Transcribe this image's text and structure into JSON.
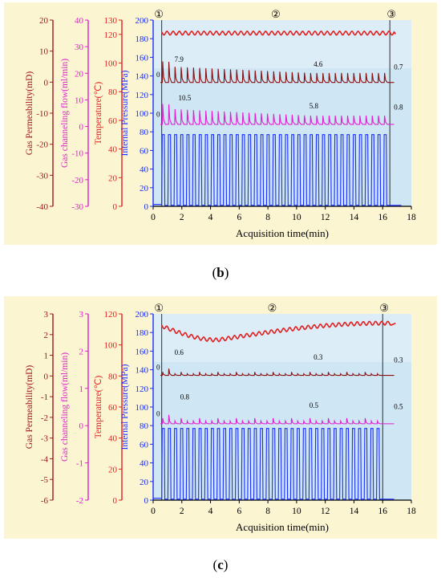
{
  "panels": [
    {
      "caption_letter": "b",
      "y_axes": [
        {
          "label": "Gas Permeability(mD)",
          "color": "#a01818",
          "ticks": [
            "20",
            "10",
            "0",
            "-10",
            "-20",
            "-30",
            "-40"
          ]
        },
        {
          "label": "Gas channeling flow(ml/min)",
          "color": "#e020d0",
          "ticks": [
            "40",
            "30",
            "20",
            "10",
            "0",
            "-10",
            "-20",
            "-30"
          ]
        },
        {
          "label": "Temperature(℃)",
          "color": "#e02020",
          "ticks": [
            "130",
            "120",
            "100",
            "80",
            "60",
            "40",
            "20",
            "0"
          ]
        },
        {
          "label": "Internal Pressure(MPa)",
          "color": "#1a2cff",
          "ticks": [
            "200",
            "180",
            "160",
            "140",
            "120",
            "100",
            "80",
            "60",
            "40",
            "20",
            "0"
          ]
        }
      ],
      "x_axis": {
        "label": "Acquisition time(min)",
        "ticks": [
          "0",
          "2",
          "4",
          "6",
          "8",
          "10",
          "12",
          "14",
          "16",
          "18"
        ]
      },
      "stages": [
        "①",
        "②",
        "③"
      ],
      "annotations": {
        "perm_start": "0",
        "perm_peak": "7.9",
        "perm_mid": "4.6",
        "perm_end": "0.7",
        "flow_start": "0",
        "flow_peak": "10.5",
        "flow_mid": "5.8",
        "flow_end": "0.8"
      }
    },
    {
      "caption_letter": "c",
      "y_axes": [
        {
          "label": "Gas Permeability(mD)",
          "color": "#a01818",
          "ticks": [
            "3",
            "2",
            "1",
            "0",
            "-1",
            "-2",
            "-3",
            "-4",
            "-5",
            "-6"
          ]
        },
        {
          "label": "Gas channeling flow(ml/min)",
          "color": "#e020d0",
          "ticks": [
            "3",
            "2",
            "1",
            "0",
            "-1",
            "-2"
          ]
        },
        {
          "label": "Temperature(℃)",
          "color": "#e02020",
          "ticks": [
            "120",
            "100",
            "80",
            "60",
            "40",
            "20",
            "0"
          ]
        },
        {
          "label": "Internal Pressure(MPa)",
          "color": "#1a2cff",
          "ticks": [
            "200",
            "180",
            "160",
            "140",
            "120",
            "100",
            "80",
            "60",
            "40",
            "20",
            "0"
          ]
        }
      ],
      "x_axis": {
        "label": "Acquisition time(min)",
        "ticks": [
          "0",
          "2",
          "4",
          "6",
          "8",
          "10",
          "12",
          "14",
          "16",
          "18"
        ]
      },
      "stages": [
        "①",
        "②",
        "③"
      ],
      "annotations": {
        "perm_start": "0",
        "perm_peak": "0.6",
        "perm_mid": "0.3",
        "perm_end": "0.3",
        "flow_start": "0",
        "flow_peak": "0.8",
        "flow_mid": "0.5",
        "flow_end": "0.5"
      }
    }
  ],
  "chart_data": [
    {
      "type": "line",
      "x_range": [
        0,
        18
      ],
      "xlabel": "Acquisition time(min)",
      "series": [
        {
          "name": "Internal Pressure(MPa)",
          "axis": "Internal Pressure(MPa)",
          "color": "#1a2cff",
          "pattern": "square-wave cycles",
          "min": 0,
          "max": 77,
          "t_start": 0.6,
          "t_end": 16.5,
          "cycles": 37
        },
        {
          "name": "Temperature(℃)",
          "axis": "Internal Pressure(MPa) scale",
          "color": "#e02020",
          "pattern": "oscillating flat",
          "mean": 186,
          "amplitude": 2,
          "t_start": 0.6,
          "t_end": 16.8
        },
        {
          "name": "Gas Permeability(mD)",
          "axis": "Internal Pressure(MPa) scale",
          "color": "#8b1010",
          "base": 133,
          "peak_start": 7.9,
          "peak_end": 4.6,
          "final": 0.7
        },
        {
          "name": "Gas channeling flow(ml/min)",
          "axis": "Internal Pressure(MPa) scale",
          "color": "#e020d0",
          "base": 88,
          "peak_start": 10.5,
          "peak_end": 5.8,
          "final": 0.8
        }
      ]
    },
    {
      "type": "line",
      "x_range": [
        0,
        18
      ],
      "xlabel": "Acquisition time(min)",
      "series": [
        {
          "name": "Internal Pressure(MPa)",
          "axis": "Internal Pressure(MPa)",
          "color": "#1a2cff",
          "pattern": "square-wave cycles",
          "min": 0,
          "max": 77,
          "t_start": 0.6,
          "t_end": 16.0,
          "cycles": 36
        },
        {
          "name": "Temperature(℃)",
          "axis": "Internal Pressure(MPa) scale",
          "color": "#e02020",
          "pattern": "dip then rise",
          "start": 187,
          "min": 172,
          "min_at": 4.5,
          "end": 190
        },
        {
          "name": "Gas Permeability(mD)",
          "axis": "Internal Pressure(MPa) scale",
          "color": "#8b1010",
          "base": 134,
          "spike_first": 0.6,
          "spike_typical": 0.3
        },
        {
          "name": "Gas channeling flow(ml/min)",
          "axis": "Internal Pressure(MPa) scale",
          "color": "#e020d0",
          "base": 82,
          "spike_first": 0.8,
          "spike_typical": 0.5
        }
      ]
    }
  ]
}
